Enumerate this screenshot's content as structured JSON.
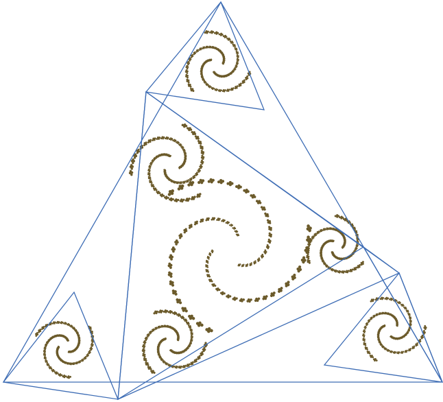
{
  "figure": {
    "description_visible_text": "",
    "colors": {
      "background": "#ffffff",
      "outline": "#3e6db5",
      "fractal": "#6b5a2a"
    }
  }
}
